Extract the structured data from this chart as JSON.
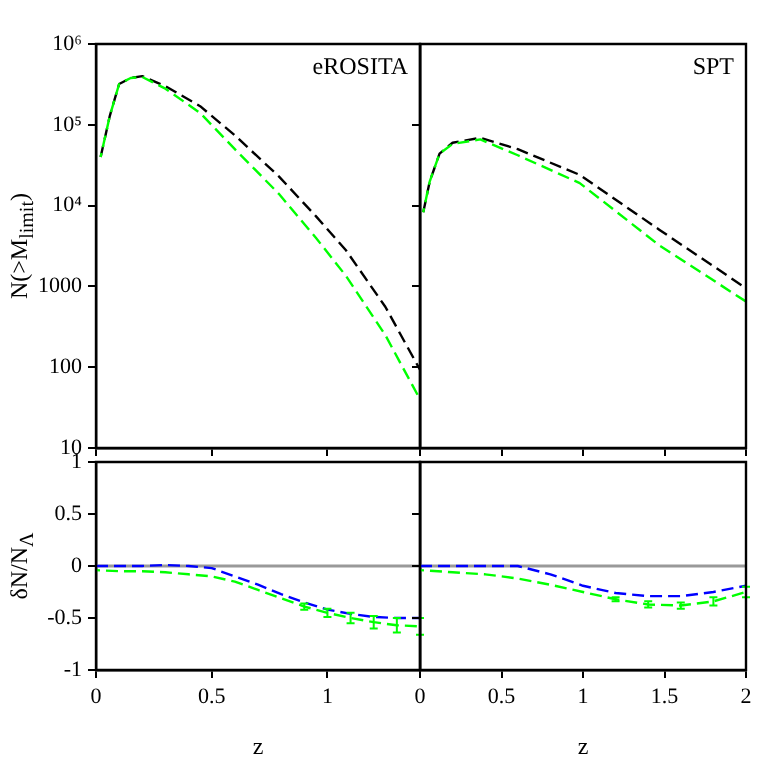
{
  "chart_data": [
    {
      "type": "line",
      "annotations": [
        "eROSITA"
      ],
      "ylabel": "N(>M$_{limit}$)",
      "log": "y",
      "xlim": [
        0,
        1.4
      ],
      "xticks": [
        0,
        0.5,
        1
      ],
      "ylim": [
        10,
        1000000
      ],
      "yticks": [
        10,
        100,
        1000,
        {
          "value": 10000,
          "label": "10⁴"
        },
        {
          "value": 100000,
          "label": "10⁵"
        },
        {
          "value": 1000000,
          "label": "10⁶"
        }
      ],
      "tick_labels": "y",
      "grid": false,
      "legend": false,
      "marker": "none",
      "series": [
        {
          "color": "#000000",
          "line_style": "dashed",
          "x": [
            0.02,
            0.06,
            0.1,
            0.15,
            0.2,
            0.3,
            0.45,
            0.6,
            0.79,
            0.95,
            1.08,
            1.25,
            1.4
          ],
          "values": [
            40000,
            130000,
            320000,
            380000,
            400000,
            300000,
            170000,
            74000,
            23000,
            7400,
            2800,
            560,
            93
          ]
        },
        {
          "color": "#00ff00",
          "line_style": "dashed",
          "x": [
            0.02,
            0.06,
            0.1,
            0.15,
            0.2,
            0.3,
            0.45,
            0.6,
            0.79,
            0.95,
            1.08,
            1.25,
            1.4
          ],
          "values": [
            40000,
            130000,
            320000,
            380000,
            390000,
            280000,
            140000,
            50000,
            14000,
            4000,
            1350,
            250,
            40
          ]
        }
      ]
    },
    {
      "type": "line",
      "annotations": [
        "SPT"
      ],
      "log": "y",
      "xlim": [
        0,
        2
      ],
      "xticks": [
        0,
        0.5,
        1,
        1.5,
        2
      ],
      "ylim": [
        10,
        1000000
      ],
      "yticks": [
        10,
        100,
        1000,
        10000,
        100000,
        1000000
      ],
      "tick_labels": false,
      "grid": false,
      "legend": false,
      "marker": "none",
      "series": [
        {
          "color": "#000000",
          "line_style": "dashed",
          "x": [
            0.02,
            0.06,
            0.12,
            0.2,
            0.37,
            0.6,
            0.98,
            1.47,
            2.0
          ],
          "values": [
            8300,
            20000,
            44000,
            60000,
            69000,
            50000,
            24000,
            5000,
            950
          ]
        },
        {
          "color": "#00ff00",
          "line_style": "dashed",
          "x": [
            0.02,
            0.06,
            0.12,
            0.2,
            0.37,
            0.6,
            0.98,
            1.47,
            2.0
          ],
          "values": [
            8300,
            20000,
            44000,
            58000,
            66000,
            42000,
            19000,
            3200,
            650
          ]
        }
      ]
    },
    {
      "type": "line",
      "xlabel": "z",
      "ylabel": "δN/N$_{Λ}$",
      "xlim": [
        0,
        1.4
      ],
      "xticks": [
        0,
        0.5,
        1
      ],
      "ylim": [
        -1,
        1
      ],
      "yticks": [
        -1,
        -0.5,
        0,
        0.5,
        1
      ],
      "grid": false,
      "legend": false,
      "marker": "none",
      "ref_lines": [
        {
          "axis": "y",
          "value": 0,
          "color": "#999999"
        }
      ],
      "series": [
        {
          "color": "#0000ff",
          "line_style": "dashed",
          "x": [
            0,
            0.1,
            0.2,
            0.3,
            0.4,
            0.5,
            0.6,
            0.7,
            0.8,
            0.9,
            1.0,
            1.1,
            1.2,
            1.3,
            1.4
          ],
          "values": [
            0,
            0,
            0,
            0.01,
            0,
            -0.02,
            -0.1,
            -0.18,
            -0.27,
            -0.35,
            -0.42,
            -0.46,
            -0.49,
            -0.5,
            -0.5
          ]
        },
        {
          "color": "#00ff00",
          "line_style": "dashed",
          "x": [
            0,
            0.1,
            0.2,
            0.3,
            0.4,
            0.5,
            0.6,
            0.7,
            0.8,
            0.9,
            1.0,
            1.1,
            1.2,
            1.3,
            1.4
          ],
          "values": [
            -0.04,
            -0.05,
            -0.05,
            -0.06,
            -0.08,
            -0.1,
            -0.15,
            -0.23,
            -0.31,
            -0.39,
            -0.45,
            -0.5,
            -0.54,
            -0.57,
            -0.58
          ],
          "errors": [
            null,
            null,
            null,
            null,
            null,
            null,
            null,
            null,
            null,
            0.03,
            0.04,
            0.05,
            0.06,
            0.07,
            0.08
          ]
        }
      ]
    },
    {
      "type": "line",
      "xlabel": "z",
      "xlim": [
        0,
        2
      ],
      "xticks": [
        0,
        0.5,
        1,
        1.5,
        2
      ],
      "ylim": [
        -1,
        1
      ],
      "yticks": [
        -1,
        -0.5,
        0,
        0.5,
        1
      ],
      "tick_labels": "x",
      "grid": false,
      "legend": false,
      "marker": "none",
      "ref_lines": [
        {
          "axis": "y",
          "value": 0,
          "color": "#999999"
        }
      ],
      "series": [
        {
          "color": "#0000ff",
          "line_style": "dashed",
          "x": [
            0,
            0.2,
            0.4,
            0.6,
            0.8,
            1.0,
            1.2,
            1.4,
            1.6,
            1.8,
            2.0
          ],
          "values": [
            0,
            0,
            0,
            0,
            -0.08,
            -0.19,
            -0.26,
            -0.29,
            -0.29,
            -0.25,
            -0.19
          ]
        },
        {
          "color": "#00ff00",
          "line_style": "dashed",
          "x": [
            0,
            0.2,
            0.4,
            0.6,
            0.8,
            1.0,
            1.2,
            1.4,
            1.6,
            1.8,
            2.0
          ],
          "values": [
            -0.04,
            -0.06,
            -0.08,
            -0.12,
            -0.18,
            -0.25,
            -0.32,
            -0.37,
            -0.38,
            -0.34,
            -0.25
          ],
          "errors": [
            null,
            null,
            null,
            null,
            null,
            null,
            0.02,
            0.03,
            0.03,
            0.04,
            0.05
          ]
        }
      ]
    }
  ]
}
